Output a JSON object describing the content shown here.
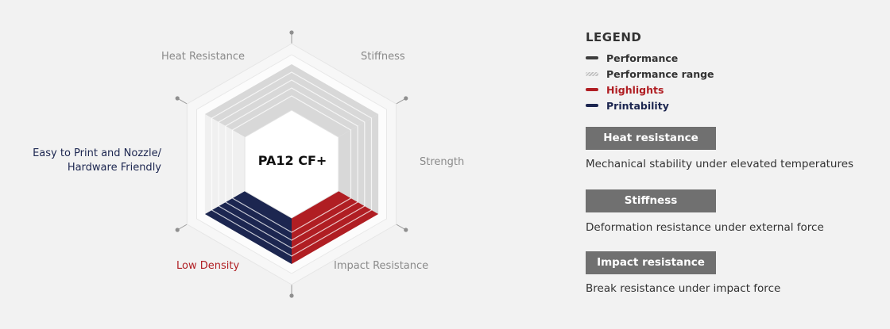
{
  "center_label": "PA12 CF+",
  "axes": {
    "heat_resistance": "Heat Resistance",
    "stiffness": "Stiffness",
    "strength": "Strength",
    "impact_resistance": "Impact Resistance",
    "low_density": "Low Density",
    "printability_line1": "Easy to Print and Nozzle/",
    "printability_line2": "Hardware Friendly"
  },
  "legend": {
    "title": "LEGEND",
    "performance": "Performance",
    "performance_range": "Performance range",
    "highlights": "Highlights",
    "printability": "Printability"
  },
  "properties": [
    {
      "title": "Heat resistance",
      "description": "Mechanical stability under elevated temperatures"
    },
    {
      "title": "Stiffness",
      "description": "Deformation resistance under external force"
    },
    {
      "title": "Impact resistance",
      "description": "Break resistance under impact force"
    }
  ],
  "colors": {
    "highlight": "#b01e23",
    "printability": "#1c2650",
    "performance_range": "#d8d8d8",
    "background": "#f2f2f2"
  }
}
